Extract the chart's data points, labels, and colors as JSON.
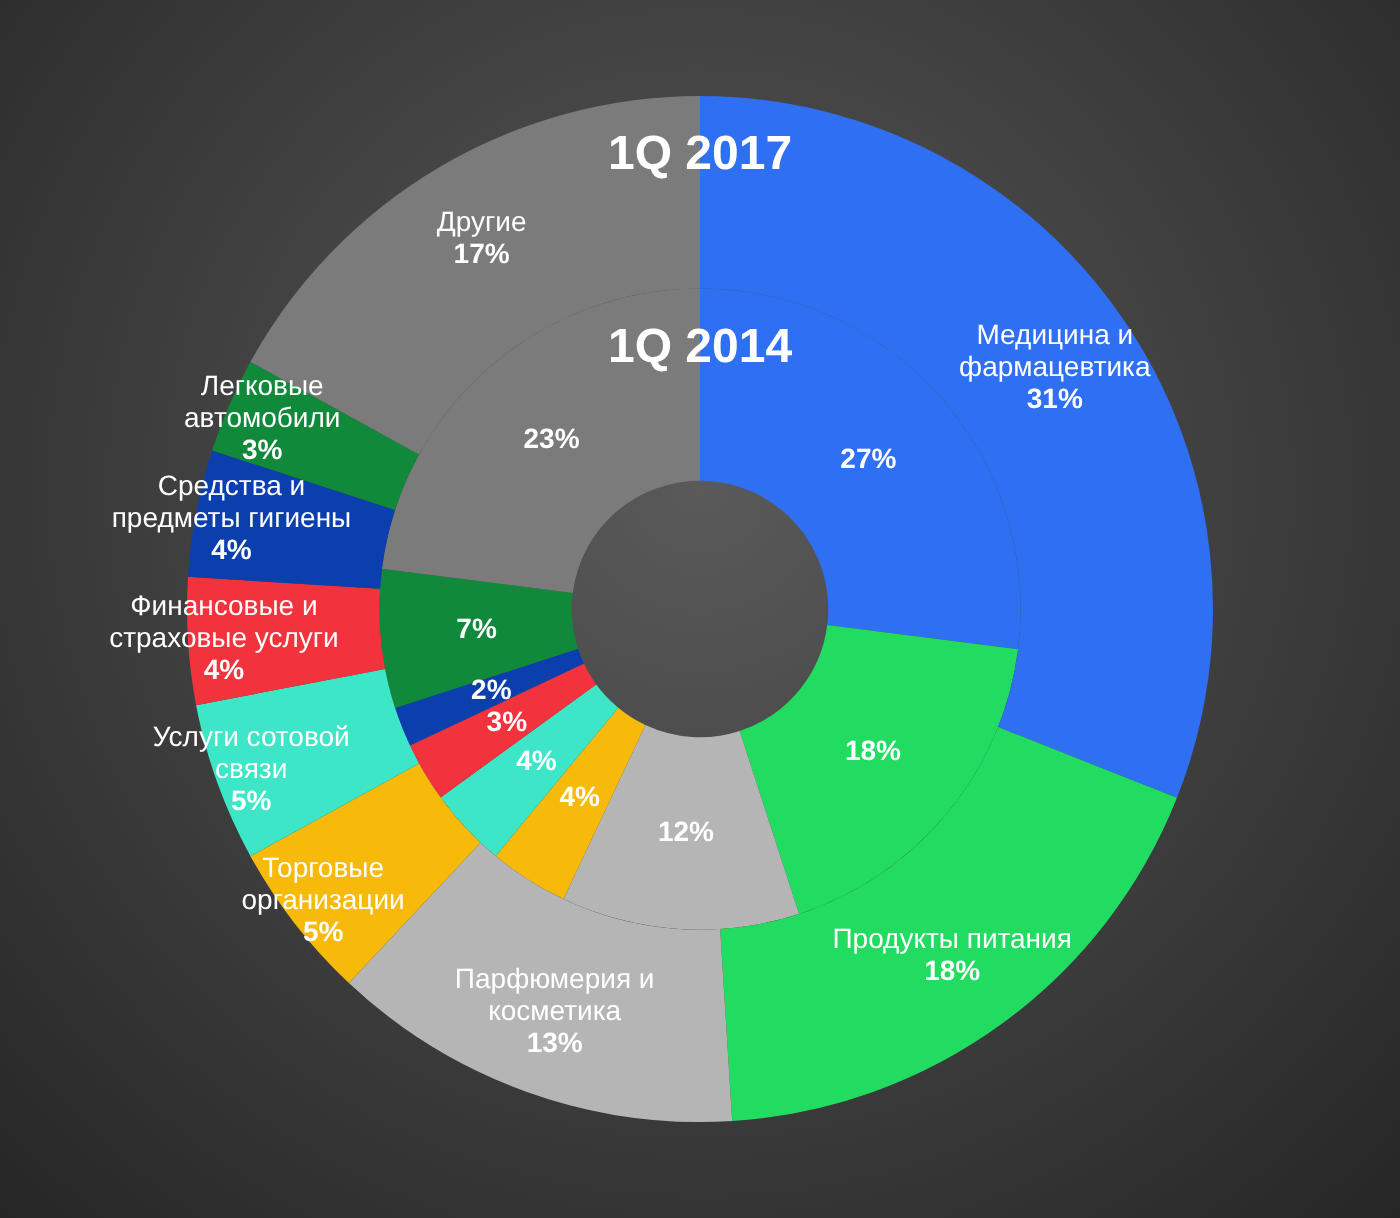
{
  "chart_data": {
    "type": "donut",
    "categories": [
      "Медицина и фармацевтика",
      "Продукты питания",
      "Парфюмерия и косметика",
      "Торговые организации",
      "Услуги сотовой связи",
      "Финансовые и страховые услуги",
      "Средства и предметы гигиены",
      "Легковые автомобили",
      "Другие"
    ],
    "colors": [
      "#2f6ff2",
      "#22dc62",
      "#b5b5b5",
      "#f7b90a",
      "#3ee6c8",
      "#f2333d",
      "#0b3fae",
      "#11893a",
      "#7b7b7b"
    ],
    "series": [
      {
        "name": "1Q 2017",
        "values": [
          31,
          18,
          13,
          5,
          5,
          4,
          4,
          3,
          17
        ],
        "value_labels": [
          "31%",
          "18%",
          "13%",
          "5%",
          "5%",
          "4%",
          "4%",
          "3%",
          "17%"
        ]
      },
      {
        "name": "1Q 2014",
        "values": [
          27,
          18,
          12,
          4,
          4,
          3,
          2,
          7,
          23
        ],
        "value_labels": [
          "27%",
          "18%",
          "12%",
          "4%",
          "4%",
          "3%",
          "2%",
          "7%",
          "23%"
        ]
      }
    ],
    "legend": false
  }
}
